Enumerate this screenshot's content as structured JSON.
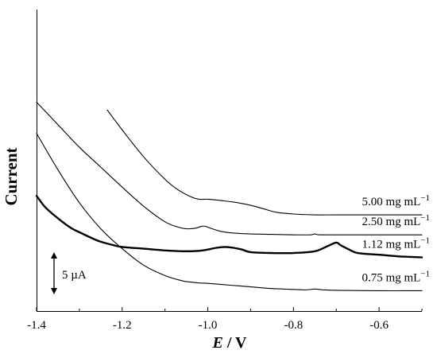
{
  "chart_data": {
    "type": "line",
    "xlabel_italic": "E",
    "xlabel_rest": " / V",
    "ylabel": "Current",
    "xlim": [
      -1.4,
      -0.5
    ],
    "x_ticks": [
      -1.4,
      -1.2,
      -1.0,
      -0.8,
      -0.6
    ],
    "x_tick_labels": [
      "-1.4",
      "-1.2",
      "-1.0",
      "-0.8",
      "-0.6"
    ],
    "scale_bar_label": "5 µA",
    "series": [
      {
        "name": "5.00 mg mL",
        "superscript": "−1",
        "bold": false,
        "x": [
          -1.235,
          -1.2,
          -1.15,
          -1.1,
          -1.07,
          -1.04,
          -1.02,
          -1.0,
          -0.96,
          -0.93,
          -0.9,
          -0.87,
          -0.84,
          -0.8,
          -0.75,
          -0.7,
          -0.6,
          -0.5
        ],
        "y": [
          20.9,
          18.6,
          15.5,
          12.9,
          11.7,
          10.9,
          10.6,
          10.6,
          10.4,
          10.2,
          9.9,
          9.5,
          9.1,
          8.9,
          8.8,
          8.8,
          8.8,
          8.8
        ]
      },
      {
        "name": "2.50 mg mL",
        "superscript": "−1",
        "bold": false,
        "x": [
          -1.4,
          -1.35,
          -1.3,
          -1.25,
          -1.2,
          -1.15,
          -1.1,
          -1.07,
          -1.05,
          -1.03,
          -1.01,
          -0.99,
          -0.97,
          -0.94,
          -0.9,
          -0.85,
          -0.8,
          -0.76,
          -0.75,
          -0.74,
          -0.7,
          -0.6,
          -0.5
        ],
        "y": [
          21.8,
          19.2,
          16.6,
          14.3,
          12.0,
          9.8,
          8.0,
          7.4,
          7.2,
          7.25,
          7.5,
          7.2,
          6.9,
          6.7,
          6.6,
          6.55,
          6.5,
          6.5,
          6.6,
          6.5,
          6.5,
          6.5,
          6.5
        ]
      },
      {
        "name": "1.12 mg mL",
        "superscript": "−1",
        "bold": true,
        "x": [
          -1.4,
          -1.38,
          -1.35,
          -1.32,
          -1.3,
          -1.27,
          -1.25,
          -1.22,
          -1.2,
          -1.15,
          -1.1,
          -1.05,
          -1.02,
          -1.0,
          -0.98,
          -0.96,
          -0.94,
          -0.92,
          -0.9,
          -0.85,
          -0.8,
          -0.75,
          -0.72,
          -0.7,
          -0.69,
          -0.67,
          -0.65,
          -0.6,
          -0.55,
          -0.5
        ],
        "y": [
          11.0,
          9.7,
          8.4,
          7.3,
          6.8,
          6.1,
          5.7,
          5.3,
          5.1,
          4.9,
          4.7,
          4.6,
          4.65,
          4.8,
          5.0,
          5.1,
          5.0,
          4.8,
          4.5,
          4.4,
          4.4,
          4.6,
          5.2,
          5.6,
          5.3,
          4.8,
          4.4,
          4.2,
          4.0,
          3.9
        ]
      },
      {
        "name": "0.75 mg mL",
        "superscript": "−1",
        "bold": false,
        "x": [
          -1.4,
          -1.35,
          -1.3,
          -1.25,
          -1.2,
          -1.15,
          -1.1,
          -1.06,
          -1.04,
          -1.02,
          -1.0,
          -0.95,
          -0.9,
          -0.85,
          -0.8,
          -0.77,
          -0.75,
          -0.73,
          -0.7,
          -0.6,
          -0.5
        ],
        "y": [
          18.2,
          14.0,
          10.2,
          7.2,
          4.9,
          3.0,
          1.8,
          1.2,
          1.05,
          0.95,
          0.9,
          0.7,
          0.5,
          0.3,
          0.2,
          0.15,
          0.25,
          0.15,
          0.1,
          0.05,
          0.05
        ]
      }
    ]
  }
}
